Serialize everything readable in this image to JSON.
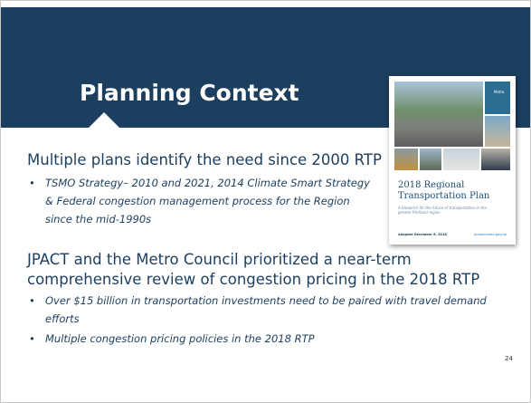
{
  "header": {
    "title": "Planning Context"
  },
  "sections": [
    {
      "heading": "Multiple plans identify the need since 2000 RTP",
      "bullets": [
        "TSMO Strategy– 2010 and 2021, 2014 Climate Smart Strategy & Federal congestion management process for the Region since the mid-1990s"
      ]
    },
    {
      "heading": "JPACT and the Metro Council prioritized a near-term comprehensive review of congestion pricing in the 2018 RTP",
      "bullets": [
        "Over $15 billion in transportation investments need to be paired with travel demand efforts",
        "Multiple congestion pricing policies in the 2018 RTP"
      ]
    }
  ],
  "cover": {
    "logo": "Metro",
    "title": "2018 Regional Transportation Plan",
    "subtitle": "A blueprint for the future of transportation in the greater Portland region",
    "date": "Adopted December 6, 2018",
    "url": "oregonmetro.gov/rtp"
  },
  "page_number": "24"
}
